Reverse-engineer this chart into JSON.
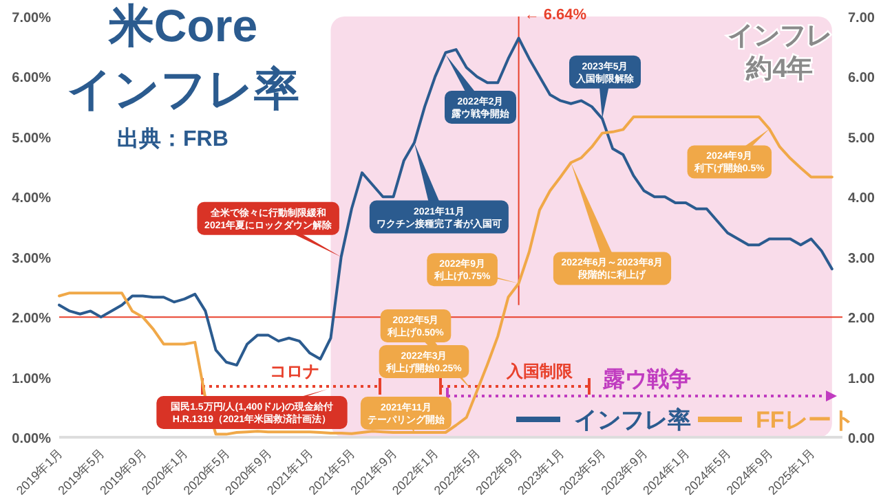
{
  "chart_data": {
    "type": "line",
    "title": "米Core\nインフレ率",
    "subtitle": "出典：FRB",
    "x": [
      "2019-01",
      "2019-02",
      "2019-03",
      "2019-04",
      "2019-05",
      "2019-06",
      "2019-07",
      "2019-08",
      "2019-09",
      "2019-10",
      "2019-11",
      "2019-12",
      "2020-01",
      "2020-02",
      "2020-03",
      "2020-04",
      "2020-05",
      "2020-06",
      "2020-07",
      "2020-08",
      "2020-09",
      "2020-10",
      "2020-11",
      "2020-12",
      "2021-01",
      "2021-02",
      "2021-03",
      "2021-04",
      "2021-05",
      "2021-06",
      "2021-07",
      "2021-08",
      "2021-09",
      "2021-10",
      "2021-11",
      "2021-12",
      "2022-01",
      "2022-02",
      "2022-03",
      "2022-04",
      "2022-05",
      "2022-06",
      "2022-07",
      "2022-08",
      "2022-09",
      "2022-10",
      "2022-11",
      "2022-12",
      "2023-01",
      "2023-02",
      "2023-03",
      "2023-04",
      "2023-05",
      "2023-06",
      "2023-07",
      "2023-08",
      "2023-09",
      "2023-10",
      "2023-11",
      "2023-12",
      "2024-01",
      "2024-02",
      "2024-03",
      "2024-04",
      "2024-05",
      "2024-06",
      "2024-07",
      "2024-08",
      "2024-09",
      "2024-10",
      "2024-11",
      "2024-12",
      "2025-01",
      "2025-02",
      "2025-03"
    ],
    "series": [
      {
        "name": "インフレ率",
        "color": "#2b5b8f",
        "values": [
          2.2,
          2.1,
          2.05,
          2.1,
          2.0,
          2.1,
          2.2,
          2.35,
          2.35,
          2.33,
          2.33,
          2.25,
          2.3,
          2.38,
          2.1,
          1.45,
          1.25,
          1.2,
          1.55,
          1.7,
          1.7,
          1.6,
          1.65,
          1.6,
          1.4,
          1.3,
          1.65,
          3.0,
          3.8,
          4.4,
          4.2,
          4.0,
          4.0,
          4.6,
          4.9,
          5.5,
          6.0,
          6.4,
          6.45,
          6.15,
          6.0,
          5.9,
          5.9,
          6.3,
          6.64,
          6.3,
          6.0,
          5.7,
          5.6,
          5.55,
          5.6,
          5.5,
          5.3,
          4.8,
          4.7,
          4.35,
          4.1,
          4.0,
          4.0,
          3.9,
          3.9,
          3.8,
          3.8,
          3.6,
          3.4,
          3.3,
          3.2,
          3.2,
          3.3,
          3.3,
          3.3,
          3.2,
          3.3,
          3.1,
          2.8
        ]
      },
      {
        "name": "FFレート",
        "color": "#f0a848",
        "values": [
          2.35,
          2.4,
          2.4,
          2.4,
          2.4,
          2.4,
          2.4,
          2.1,
          2.0,
          1.8,
          1.55,
          1.55,
          1.55,
          1.58,
          0.65,
          0.05,
          0.05,
          0.08,
          0.09,
          0.1,
          0.09,
          0.09,
          0.09,
          0.09,
          0.09,
          0.08,
          0.07,
          0.07,
          0.06,
          0.08,
          0.1,
          0.09,
          0.08,
          0.08,
          0.08,
          0.08,
          0.08,
          0.08,
          0.2,
          0.33,
          0.77,
          1.21,
          1.68,
          2.33,
          2.56,
          3.08,
          3.78,
          4.1,
          4.33,
          4.57,
          4.65,
          4.83,
          5.06,
          5.08,
          5.12,
          5.33,
          5.33,
          5.33,
          5.33,
          5.33,
          5.33,
          5.33,
          5.33,
          5.33,
          5.33,
          5.33,
          5.33,
          5.33,
          5.13,
          4.83,
          4.64,
          4.48,
          4.33,
          4.33,
          4.33
        ]
      }
    ],
    "xlim": [
      "2019-01",
      "2025-04"
    ],
    "xticks": [
      {
        "value": "2019-01",
        "label": "2019年1月"
      },
      {
        "value": "2019-05",
        "label": "2019年5月"
      },
      {
        "value": "2019-09",
        "label": "2019年9月"
      },
      {
        "value": "2020-01",
        "label": "2020年1月"
      },
      {
        "value": "2020-05",
        "label": "2020年5月"
      },
      {
        "value": "2020-09",
        "label": "2020年9月"
      },
      {
        "value": "2021-01",
        "label": "2021年1月"
      },
      {
        "value": "2021-05",
        "label": "2021年5月"
      },
      {
        "value": "2021-09",
        "label": "2021年9月"
      },
      {
        "value": "2022-01",
        "label": "2022年1月"
      },
      {
        "value": "2022-05",
        "label": "2022年5月"
      },
      {
        "value": "2022-09",
        "label": "2022年9月"
      },
      {
        "value": "2023-01",
        "label": "2023年1月"
      },
      {
        "value": "2023-05",
        "label": "2023年5月"
      },
      {
        "value": "2023-09",
        "label": "2023年9月"
      },
      {
        "value": "2024-01",
        "label": "2024年1月"
      },
      {
        "value": "2024-05",
        "label": "2024年5月"
      },
      {
        "value": "2024-09",
        "label": "2024年9月"
      },
      {
        "value": "2025-01",
        "label": "2025年1月"
      }
    ],
    "ylim": [
      0,
      7
    ],
    "yticks": [
      {
        "value": 0,
        "label": "0.00%"
      },
      {
        "value": 1,
        "label": "1.00%"
      },
      {
        "value": 2,
        "label": "2.00%"
      },
      {
        "value": 3,
        "label": "3.00%"
      },
      {
        "value": 4,
        "label": "4.00%"
      },
      {
        "value": 5,
        "label": "5.00%"
      },
      {
        "value": 6,
        "label": "6.00%"
      },
      {
        "value": 7,
        "label": "7.00%"
      }
    ],
    "y2lim": [
      0,
      7
    ],
    "y2ticks": [
      {
        "value": 0,
        "label": "0.00"
      },
      {
        "value": 1,
        "label": "1.00"
      },
      {
        "value": 2,
        "label": "2.00"
      },
      {
        "value": 3,
        "label": "3.00"
      },
      {
        "value": 4,
        "label": "4.00"
      },
      {
        "value": 5,
        "label": "5.00"
      },
      {
        "value": 6,
        "label": "6.00"
      },
      {
        "value": 7,
        "label": "7.00"
      }
    ],
    "ref_lines": [
      {
        "axis": "y",
        "value": 2,
        "color": "#e8412c"
      },
      {
        "axis": "x",
        "value": "2022-09",
        "label": "← 6.64%",
        "color": "#e8412c"
      }
    ],
    "bands": [
      {
        "axis": "x",
        "from": "2021-03",
        "to": "2025-03",
        "label": "インフレ約4年",
        "color": "#f9dcea"
      }
    ],
    "annotations": [
      {
        "text": "全米で徐々に行動制限緩和2021年夏にロックダウン解除",
        "x": "2021-04",
        "y": 3.0
      },
      {
        "text": "2021年11月ワクチン接種完了者が入国可",
        "x": "2021-11",
        "y": 4.9
      },
      "2022年2月露ウ戦争開始",
      {
        "text": "2023年5月入国制限解除",
        "x": "2023-05",
        "y": 5.3
      },
      {
        "text": "2024年9月利下げ開始0.5%",
        "x": "2024-09",
        "y": 5.13
      },
      {
        "text": "2022年6月～2023年8月段階的に利上げ",
        "x": "2023-02",
        "y": 4.57
      },
      {
        "text": "2022年9月利上げ0.75%",
        "x": "2022-09",
        "y": 2.56
      },
      "2022年5月利上げ0.50%",
      "2022年3月利上げ開始0.25%",
      {
        "text": "2021年11月テーパリング開始",
        "x": "2021-11",
        "y": 0.08
      },
      "国民1.5万円/人(1,400ドル)の現金給付\nH.R.1319（2021年米国救済計画法）",
      "コロナ",
      "入国制限",
      "露ウ戦争"
    ],
    "legend": "bottom right"
  }
}
